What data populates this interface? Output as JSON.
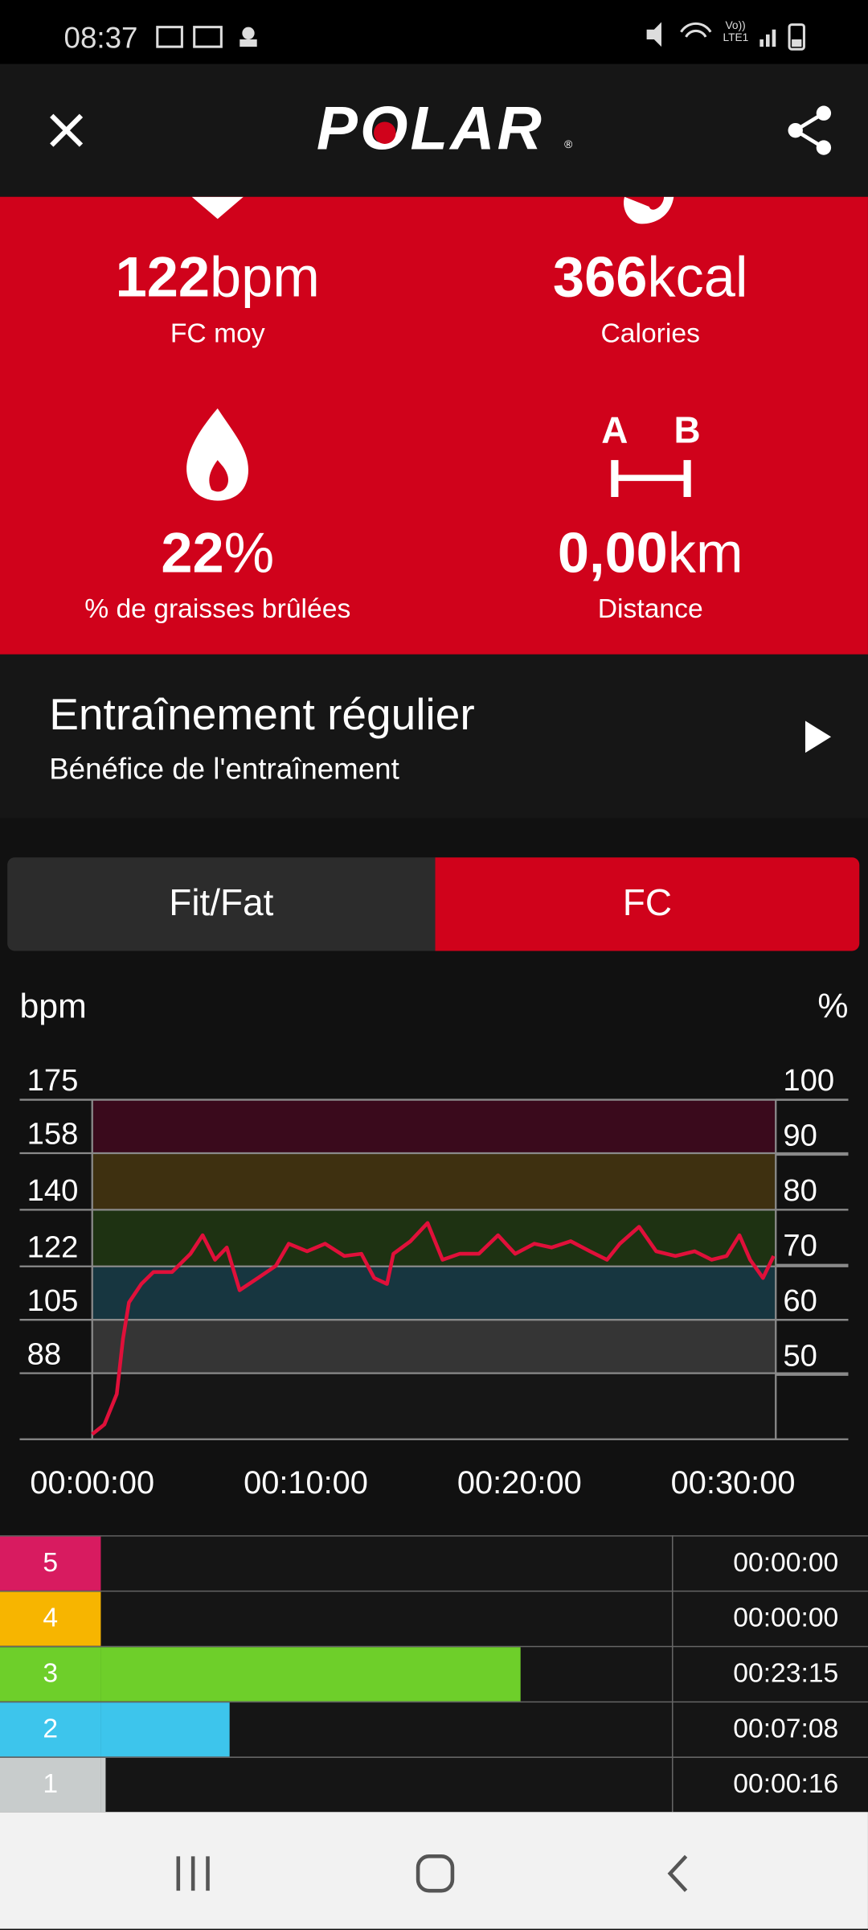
{
  "status_bar": {
    "time": "08:37",
    "network": [
      "Vo))",
      "LTE1"
    ]
  },
  "header": {
    "logo": "POLAR",
    "registered": "®"
  },
  "stats": [
    {
      "value": "122",
      "unit": "bpm",
      "label": "FC moy"
    },
    {
      "value": "366",
      "unit": "kcal",
      "label": "Calories"
    },
    {
      "value": "22",
      "unit": "%",
      "label": "% de graisses brûlées"
    },
    {
      "value": "0,00",
      "unit": "km",
      "label": "Distance"
    }
  ],
  "distance_icon": {
    "start": "A",
    "end": "B"
  },
  "training": {
    "title": "Entraînement régulier",
    "subtitle": "Bénéfice de l'entraînement"
  },
  "tabs": [
    "Fit/Fat",
    "FC"
  ],
  "chart_data": {
    "type": "line",
    "y_label": "bpm",
    "y2_label": "%",
    "color": "#e0103a",
    "x": [
      0,
      0.57,
      1.15,
      1.44,
      1.72,
      2.3,
      2.87,
      3.74,
      4.6,
      5.17,
      5.75,
      6.3,
      6.9,
      7.76,
      8.6,
      9.2,
      10.06,
      10.9,
      11.8,
      12.6,
      13.2,
      13.8,
      14.1,
      14.9,
      15.7,
      16.4,
      17.2,
      18.1,
      19,
      19.8,
      20.7,
      21.5,
      22.4,
      23.3,
      24.1,
      24.7,
      25.6,
      26.4,
      27.3,
      28.2,
      29,
      29.7,
      30.3,
      30.8,
      31.4,
      31.9
    ],
    "values": [
      68.6,
      71.7,
      81.4,
      98.9,
      110.5,
      116.4,
      120.2,
      120.2,
      126,
      131.9,
      124.1,
      128,
      114.4,
      118.3,
      122.2,
      129.2,
      126.8,
      129.2,
      125.3,
      126,
      118.3,
      116.4,
      126,
      130,
      135.8,
      124.1,
      126,
      126,
      131.9,
      126,
      129.2,
      128,
      130,
      126.8,
      124.1,
      129.2,
      134.6,
      126.8,
      125.3,
      126.8,
      124.1,
      125.3,
      131.9,
      124.1,
      118.3,
      125.3
    ],
    "xlim": [
      0,
      32
    ],
    "xticks": [
      {
        "value": 0,
        "label": "00:00:00"
      },
      {
        "value": 10,
        "label": "00:10:00"
      },
      {
        "value": 20,
        "label": "00:20:00"
      },
      {
        "value": 30,
        "label": "00:30:00"
      }
    ],
    "ylim": [
      67,
      175
    ],
    "yticks": [
      88,
      105,
      122,
      140,
      158,
      175
    ],
    "y2lim": [
      38.3,
      100
    ],
    "y2ticks": [
      50,
      60,
      70,
      80,
      90,
      100
    ],
    "zone_colors": [
      "#353535",
      "#173640",
      "#1e3212",
      "#3e3010",
      "#3a0a1c"
    ],
    "grid": true
  },
  "zones_chart": {
    "type": "bar",
    "categories": [
      "5",
      "4",
      "3",
      "2",
      "1"
    ],
    "values": [
      0,
      0,
      1395,
      428,
      16
    ],
    "value_labels": [
      "00:00:00",
      "00:00:00",
      "00:23:15",
      "00:07:08",
      "00:00:16"
    ],
    "colors": [
      "#d81b60",
      "#f7b500",
      "#6ecf2a",
      "#3dc5ec",
      "#c8cccc"
    ],
    "xlim": [
      0,
      1900
    ]
  }
}
